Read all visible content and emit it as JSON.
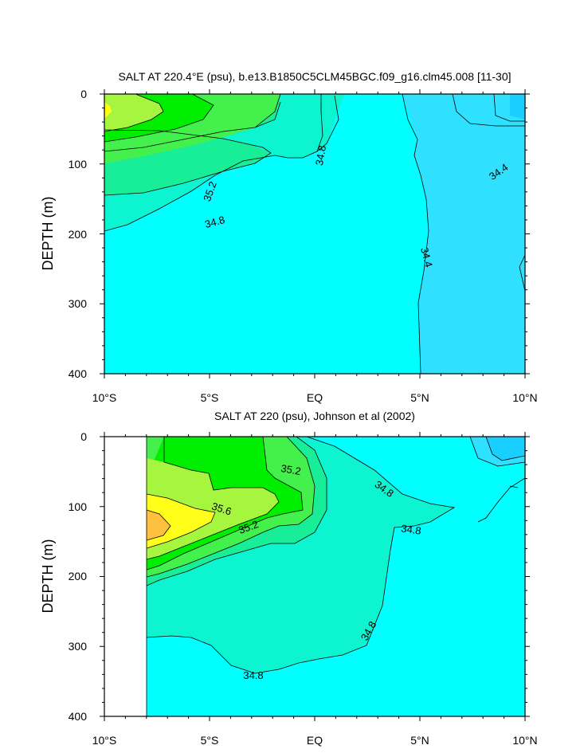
{
  "chart_data": [
    {
      "type": "contour",
      "title": "SALT AT 220.4°E (psu), b.e13.B1850C5CLM45BGC.f09_g16.clm45.008 [11-30]",
      "ylabel": "DEPTH (m)",
      "xlabel": "",
      "x_ticks": [
        "10°S",
        "5°S",
        "EQ",
        "5°N",
        "10°N"
      ],
      "x_tick_values": [
        -10,
        -5,
        0,
        5,
        10
      ],
      "y_ticks": [
        "0",
        "100",
        "200",
        "300",
        "400"
      ],
      "y_tick_values": [
        0,
        100,
        200,
        300,
        400
      ],
      "xlim": [
        -10,
        10
      ],
      "ylim": [
        0,
        400
      ],
      "y_inverted": true,
      "grid": false,
      "contour_labels": [
        {
          "text": "34.8",
          "x": 0.1,
          "y": 85
        },
        {
          "text": "35.2",
          "x": -5.0,
          "y": 137
        },
        {
          "text": "34.8",
          "x": -4.9,
          "y": 182
        },
        {
          "text": "34.4",
          "x": 8.6,
          "y": 108
        },
        {
          "text": "34.4",
          "x": 5.0,
          "y": 237
        }
      ],
      "regions": [
        {
          "level": 34.4,
          "color": "#2FE1FF"
        },
        {
          "level": 34.6,
          "color": "#00FFFF"
        },
        {
          "level": 34.8,
          "color": "#0CF5D0"
        },
        {
          "level": 35.0,
          "color": "#18EE98"
        },
        {
          "level": 35.2,
          "color": "#44F04C"
        },
        {
          "level": 35.4,
          "color": "#00EE00"
        },
        {
          "level": 35.6,
          "color": "#A6F640"
        }
      ]
    },
    {
      "type": "contour",
      "title": "SALT AT 220 (psu), Johnson et al (2002)",
      "ylabel": "DEPTH (m)",
      "xlabel": "",
      "x_ticks": [
        "10°S",
        "5°S",
        "EQ",
        "5°N",
        "10°N"
      ],
      "x_tick_values": [
        -10,
        -5,
        0,
        5,
        10
      ],
      "y_ticks": [
        "0",
        "100",
        "200",
        "300",
        "400"
      ],
      "y_tick_values": [
        0,
        100,
        200,
        300,
        400
      ],
      "xlim": [
        -10,
        10
      ],
      "ylim": [
        0,
        400
      ],
      "y_inverted": true,
      "grid": false,
      "data_xlim": [
        -8,
        10
      ],
      "contour_labels": [
        {
          "text": "35.2",
          "x": -1.3,
          "y": 47
        },
        {
          "text": "34.8",
          "x": 3.2,
          "y": 75
        },
        {
          "text": "35.6",
          "x": -4.5,
          "y": 103
        },
        {
          "text": "35.2",
          "x": -3.3,
          "y": 117
        },
        {
          "text": "34.8",
          "x": 4.6,
          "y": 135
        },
        {
          "text": "34.8",
          "x": 2.5,
          "y": 282
        },
        {
          "text": "34.8",
          "x": -3.0,
          "y": 340
        }
      ],
      "regions": [
        {
          "level": 34.4,
          "color": "#2FE1FF"
        },
        {
          "level": 34.6,
          "color": "#00FFFF"
        },
        {
          "level": 34.8,
          "color": "#0CF5D0"
        },
        {
          "level": 35.0,
          "color": "#18EE98"
        },
        {
          "level": 35.2,
          "color": "#44F04C"
        },
        {
          "level": 35.4,
          "color": "#00EE00"
        },
        {
          "level": 35.6,
          "color": "#A6F640"
        },
        {
          "level": 35.8,
          "color": "#FFFF1A"
        },
        {
          "level": 36.0,
          "color": "#FFC040"
        }
      ]
    }
  ]
}
